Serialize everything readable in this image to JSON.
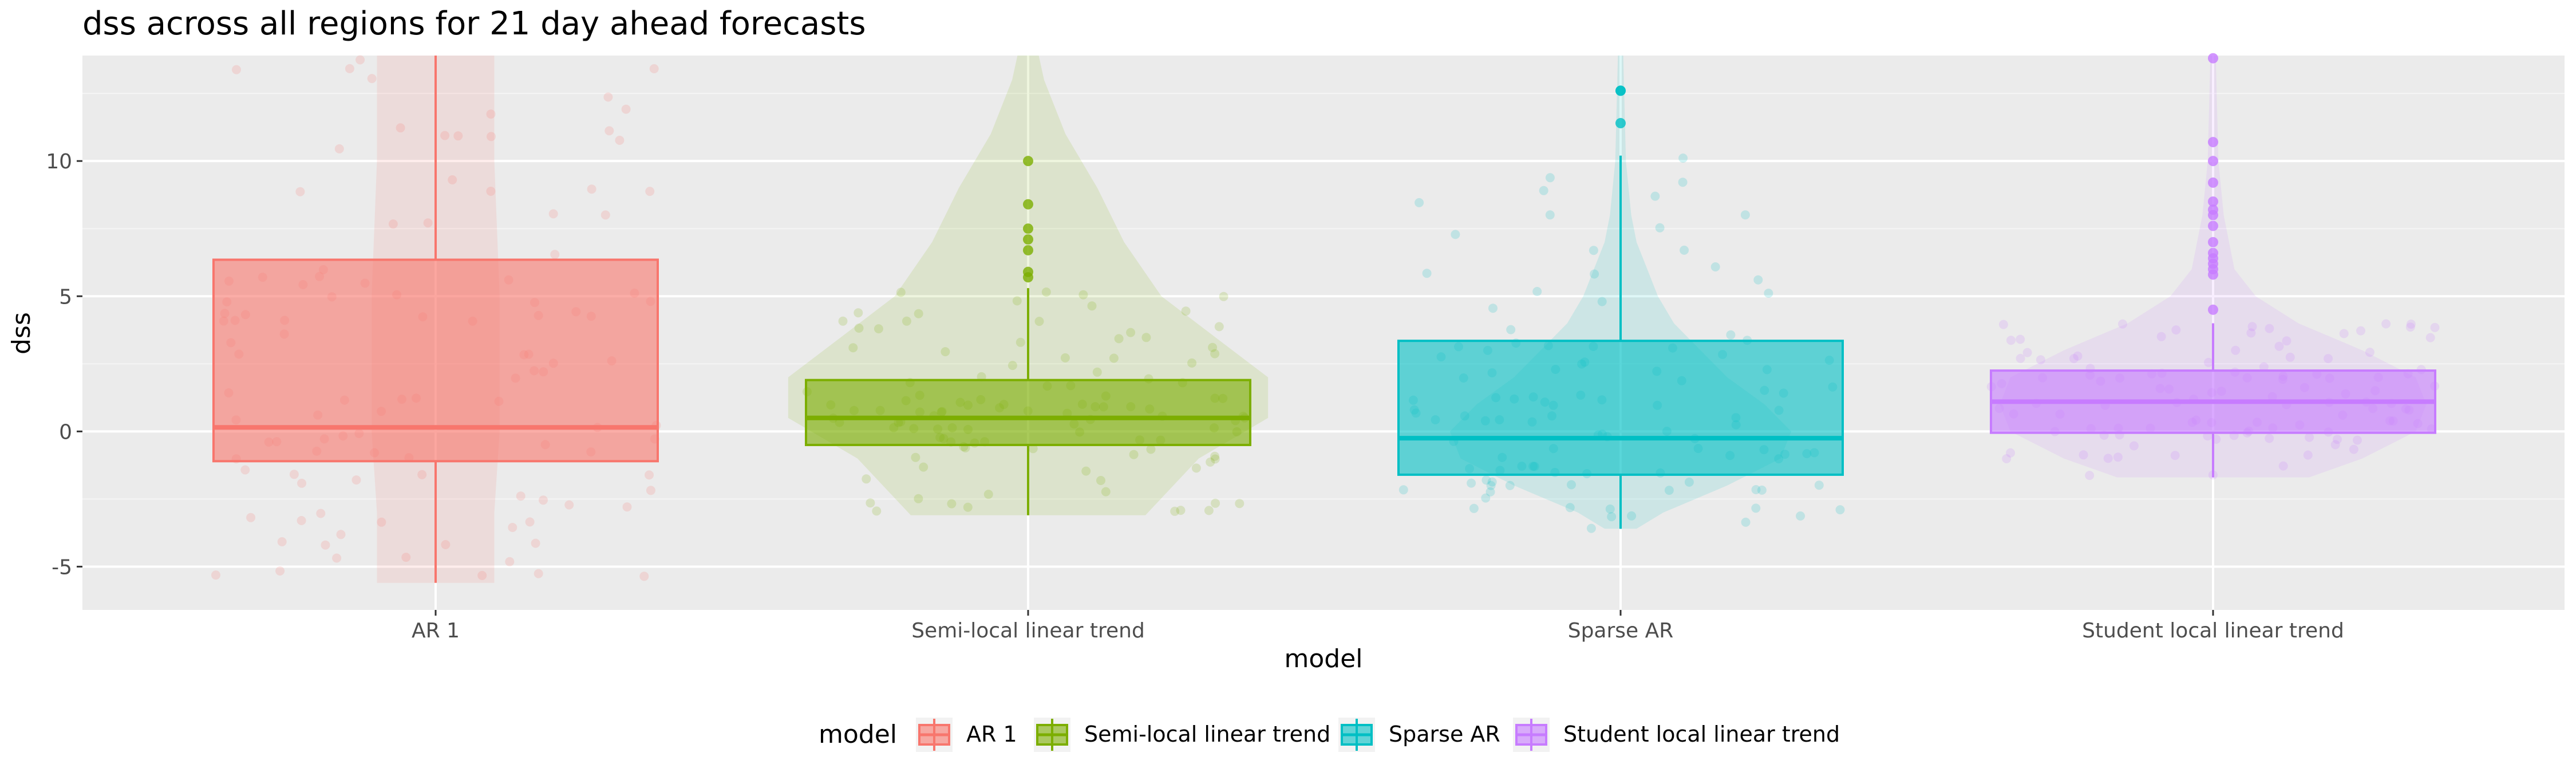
{
  "chart_data": {
    "type": "box",
    "title": "dss across all regions for 21 day ahead forecasts",
    "xlabel": "model",
    "ylabel": "dss",
    "ylim": [
      -6.6,
      13.9
    ],
    "yticks": [
      -5,
      0,
      5,
      10
    ],
    "grid": true,
    "legend_position": "bottom",
    "legend_title": "model",
    "categories": [
      "AR 1",
      "Semi-local linear trend",
      "Sparse AR",
      "Student local linear trend"
    ],
    "colors": [
      "#F8766D",
      "#7CAE00",
      "#00BFC4",
      "#C77CFF"
    ],
    "series": [
      {
        "name": "AR 1",
        "box": {
          "q1": -1.1,
          "median": 0.15,
          "q3": 6.35,
          "whisker_low": -5.6,
          "whisker_high": 13.9
        },
        "outliers": [],
        "violin": [
          [
            -5.6,
            0.11
          ],
          [
            -3,
            0.11
          ],
          [
            0,
            0.12
          ],
          [
            5,
            0.12
          ],
          [
            10,
            0.11
          ],
          [
            13.9,
            0.11
          ]
        ]
      },
      {
        "name": "Semi-local linear trend",
        "box": {
          "q1": -0.5,
          "median": 0.5,
          "q3": 1.9,
          "whisker_low": -3.1,
          "whisker_high": 5.3
        },
        "outliers": [
          5.7,
          5.9,
          6.7,
          7.1,
          7.5,
          8.4,
          10.0
        ],
        "violin": [
          [
            -3.1,
            0.22
          ],
          [
            -1,
            0.32
          ],
          [
            0.5,
            0.45
          ],
          [
            2,
            0.45
          ],
          [
            3.5,
            0.35
          ],
          [
            5,
            0.25
          ],
          [
            7,
            0.18
          ],
          [
            9,
            0.13
          ],
          [
            11,
            0.07
          ],
          [
            13,
            0.03
          ],
          [
            13.9,
            0.02
          ]
        ]
      },
      {
        "name": "Sparse AR",
        "box": {
          "q1": -1.6,
          "median": -0.25,
          "q3": 3.35,
          "whisker_low": -3.6,
          "whisker_high": 10.2
        },
        "outliers": [
          11.4,
          12.6,
          12.6
        ],
        "violin": [
          [
            -3.6,
            0.03
          ],
          [
            -3,
            0.08
          ],
          [
            -2,
            0.2
          ],
          [
            -1,
            0.3
          ],
          [
            0,
            0.32
          ],
          [
            1,
            0.27
          ],
          [
            2,
            0.2
          ],
          [
            3,
            0.15
          ],
          [
            4,
            0.1
          ],
          [
            5,
            0.07
          ],
          [
            6,
            0.05
          ],
          [
            7,
            0.03
          ],
          [
            8,
            0.02
          ],
          [
            10,
            0.01
          ],
          [
            13.9,
            0.005
          ]
        ]
      },
      {
        "name": "Student local linear trend",
        "box": {
          "q1": -0.05,
          "median": 1.1,
          "q3": 2.25,
          "whisker_low": -1.7,
          "whisker_high": 4.0
        },
        "outliers": [
          4.5,
          5.8,
          6.0,
          6.2,
          6.4,
          6.6,
          7.0,
          7.6,
          8.0,
          8.2,
          8.5,
          9.2,
          10.0,
          10.7,
          13.8
        ],
        "violin": [
          [
            -1.7,
            0.18
          ],
          [
            -1,
            0.28
          ],
          [
            0,
            0.38
          ],
          [
            1,
            0.4
          ],
          [
            2,
            0.38
          ],
          [
            3,
            0.28
          ],
          [
            4,
            0.16
          ],
          [
            5,
            0.08
          ],
          [
            6,
            0.04
          ],
          [
            8,
            0.02
          ],
          [
            10,
            0.01
          ],
          [
            13.9,
            0.005
          ]
        ]
      }
    ]
  }
}
